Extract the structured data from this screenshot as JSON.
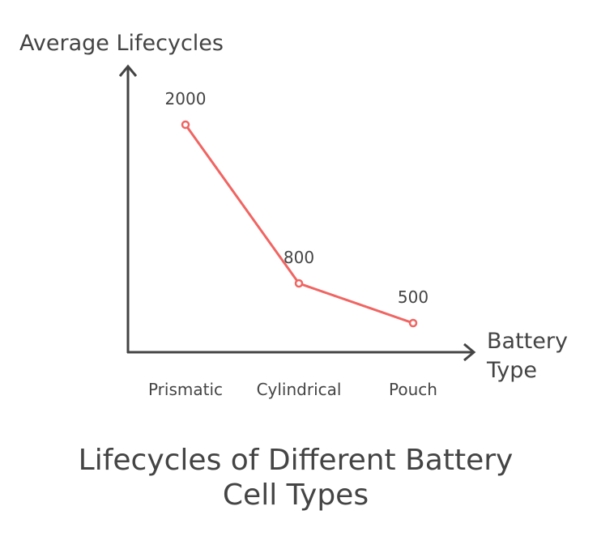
{
  "chart_data": {
    "type": "line",
    "title": "Lifecycles of Different Battery Cell Types",
    "title_lines": [
      "Lifecycles of Different Battery",
      "Cell Types"
    ],
    "xlabel": "Battery Type",
    "xlabel_lines": [
      "Battery",
      "Type"
    ],
    "ylabel": "Average Lifecycles",
    "categories": [
      "Prismatic",
      "Cylindrical",
      "Pouch"
    ],
    "values": [
      2000,
      800,
      500
    ],
    "data_labels": [
      "2000",
      "800",
      "500"
    ],
    "grid": false,
    "legend": "none",
    "line_color": "#f06562",
    "axis_color": "#444444"
  }
}
